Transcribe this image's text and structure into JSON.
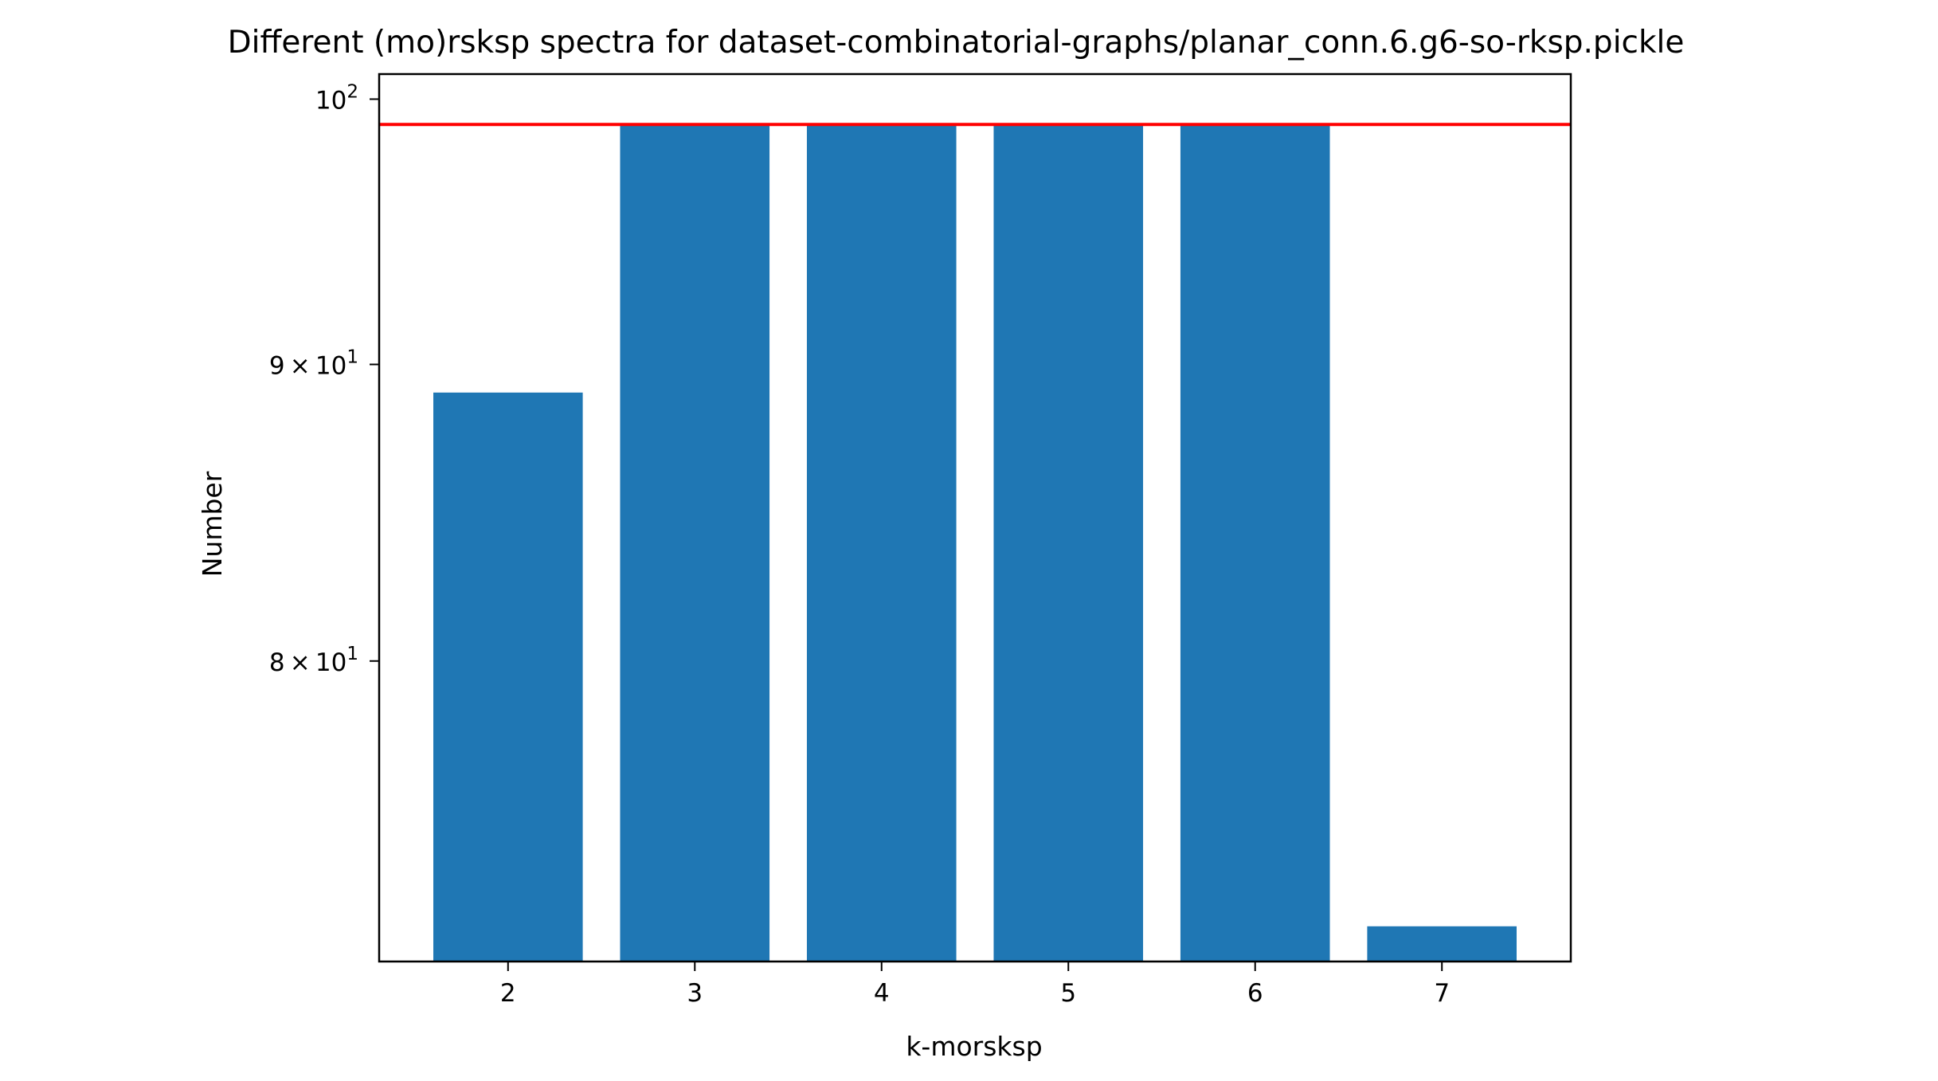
{
  "chart_data": {
    "type": "bar",
    "title": "Different (mo)rsksp spectra for dataset-combinatorial-graphs/planar_conn.6.g6-so-rksp.pickle",
    "xlabel": "k-morsksp",
    "ylabel": "Number",
    "yscale": "log",
    "ylim": [
      71.0,
      101.0
    ],
    "categories": [
      "2",
      "3",
      "4",
      "5",
      "6",
      "7"
    ],
    "values": [
      89,
      99,
      99,
      99,
      99,
      72
    ],
    "bar_color": "#1f77b4",
    "yticks": [
      {
        "value": 80,
        "mantissa": "8",
        "base": "10",
        "exp": "1"
      },
      {
        "value": 90,
        "mantissa": "9",
        "base": "10",
        "exp": "1"
      },
      {
        "value": 100,
        "mantissa": "",
        "base": "10",
        "exp": "2"
      }
    ],
    "reference_line": {
      "value": 99,
      "color": "#ff0000"
    },
    "grid": false,
    "legend": "none"
  }
}
